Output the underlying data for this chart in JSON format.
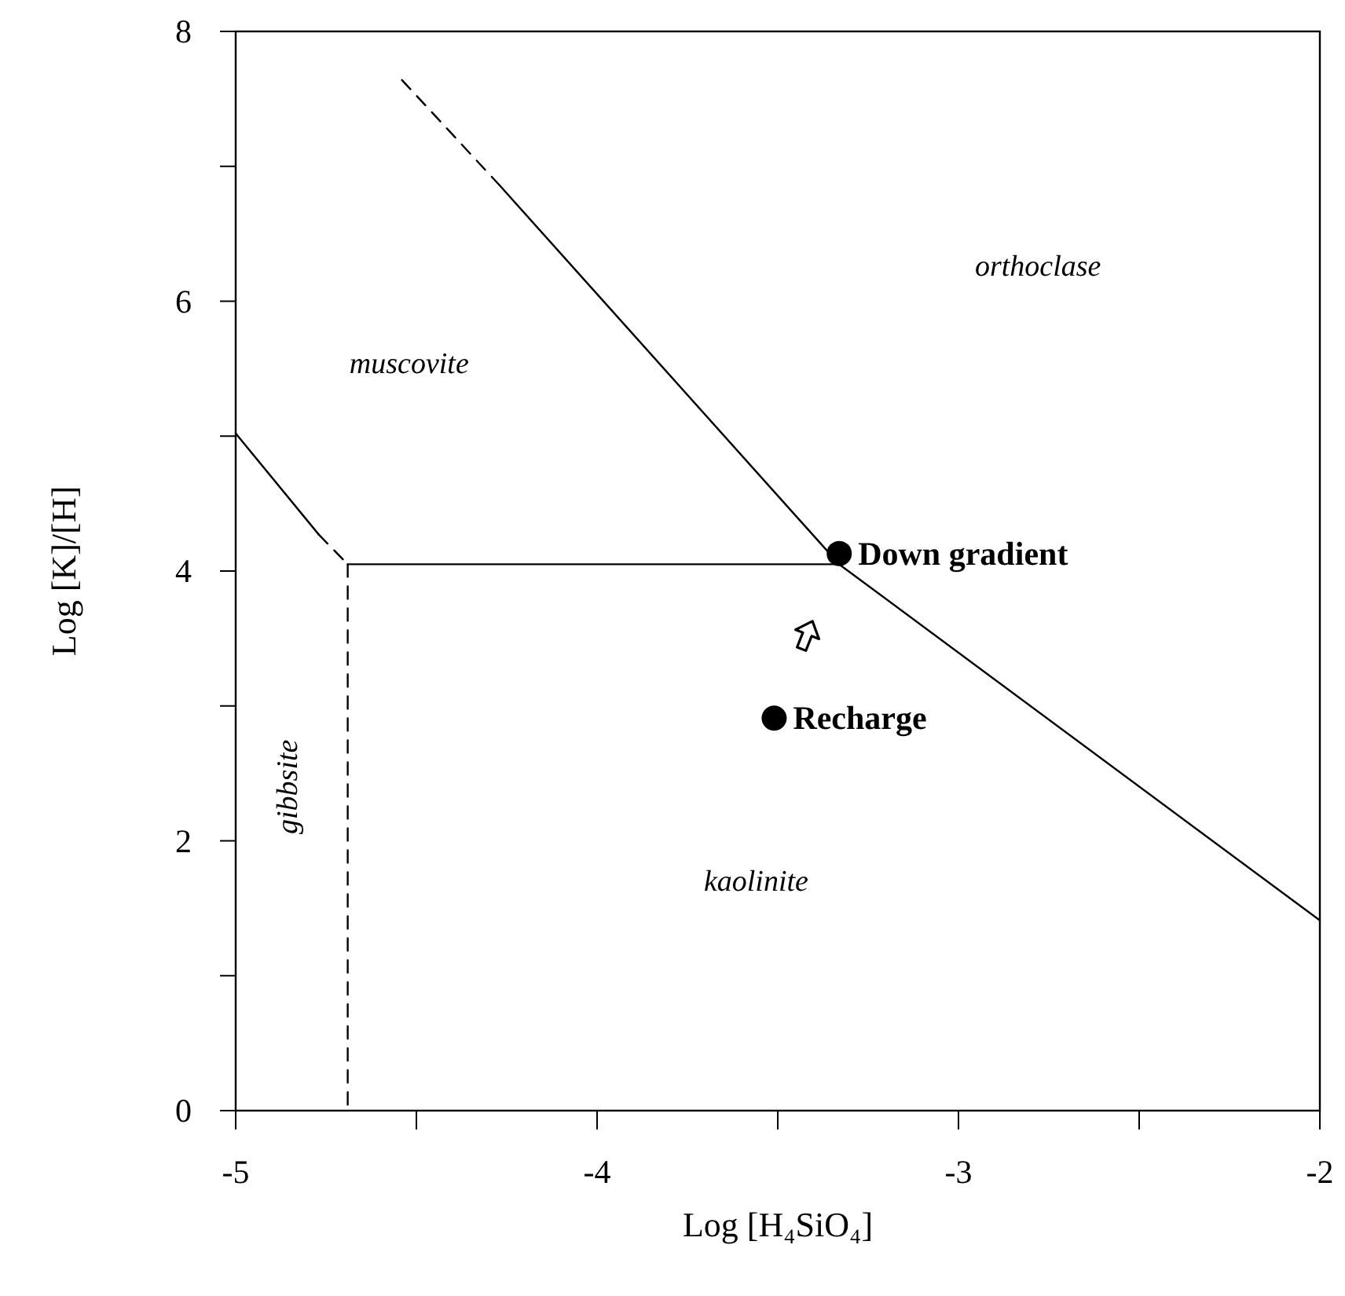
{
  "chart_data": {
    "type": "line",
    "xlabel": "Log [H₄SiO₄]",
    "ylabel": "Log [K]/[H]",
    "xlim": [
      -5,
      -2
    ],
    "ylim": [
      0,
      8
    ],
    "xticks": [
      -5,
      {
        "value": -4.5,
        "label": null
      },
      -4,
      {
        "value": -3.5,
        "label": null
      },
      -3,
      {
        "value": -2.5,
        "label": null
      },
      -2
    ],
    "yticks": [
      0,
      {
        "value": 1,
        "label": null
      },
      2,
      {
        "value": 3,
        "label": null
      },
      4,
      {
        "value": 5,
        "label": null
      },
      6,
      {
        "value": 7,
        "label": null
      },
      8
    ],
    "series": [
      {
        "color": "#000000",
        "x": [
          -4.54,
          -4.27
        ],
        "values": [
          7.64,
          6.86
        ],
        "line_style": "dashed"
      },
      {
        "color": "#000000",
        "x": [
          -4.27,
          -3.33,
          -2
        ],
        "values": [
          6.86,
          4.05,
          1.41
        ],
        "line_style": "solid"
      },
      {
        "color": "#000000",
        "x": [
          -5,
          -4.77
        ],
        "values": [
          5.02,
          4.27
        ],
        "line_style": "solid"
      },
      {
        "color": "#000000",
        "x": [
          -4.77,
          -4.69
        ],
        "values": [
          4.27,
          4.05
        ],
        "line_style": "dashed"
      },
      {
        "color": "#000000",
        "x": [
          -4.69,
          -3.33
        ],
        "values": [
          4.05,
          4.05
        ],
        "line_style": "solid"
      },
      {
        "color": "#000000",
        "x": [
          -4.69,
          -4.69
        ],
        "values": [
          4.05,
          0
        ],
        "line_style": "dashed"
      },
      {
        "type": "scatter",
        "name": "Down gradient",
        "color": "#000000",
        "x": [
          -3.33
        ],
        "values": [
          4.13
        ],
        "marker": "circle"
      },
      {
        "type": "scatter",
        "name": "Recharge",
        "color": "#000000",
        "x": [
          -3.51
        ],
        "values": [
          2.91
        ],
        "marker": "circle"
      }
    ],
    "annotations": [
      "muscovite",
      "orthoclase",
      "kaolinite",
      "gibbsite"
    ]
  }
}
